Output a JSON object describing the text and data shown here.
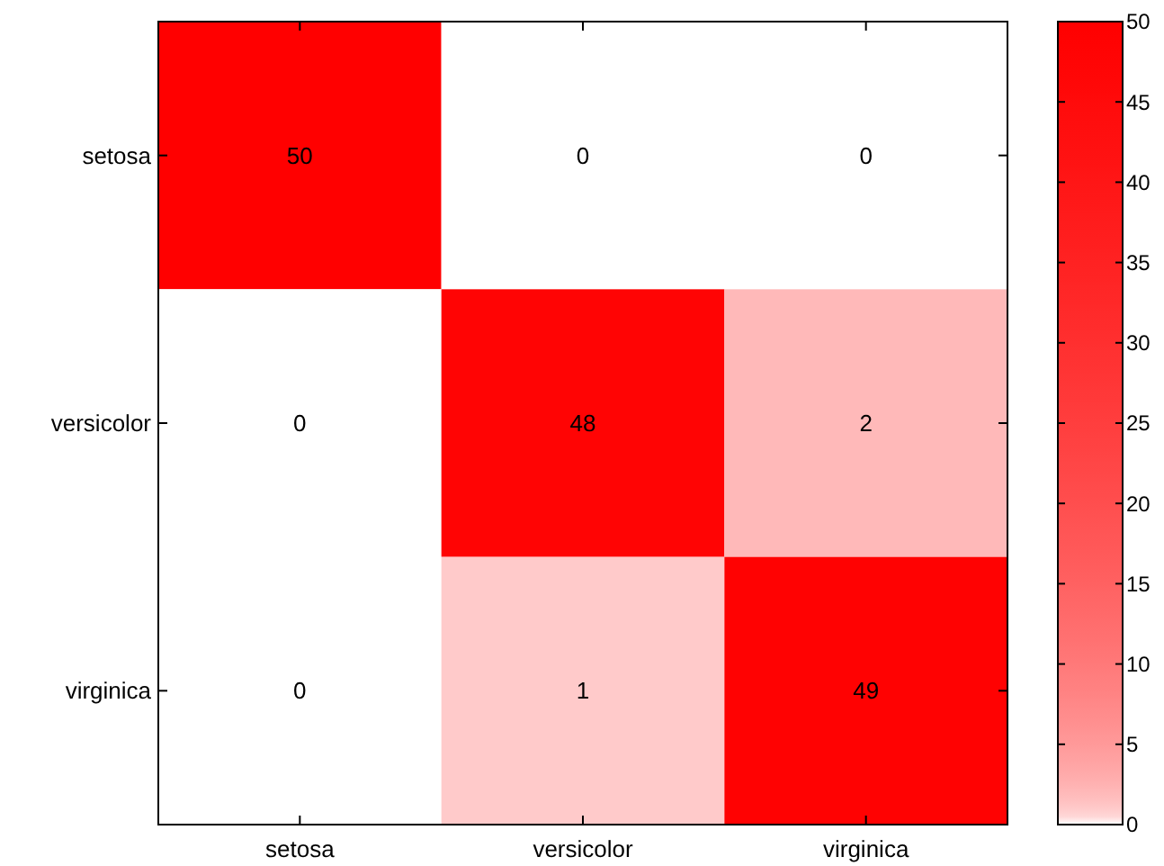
{
  "chart_data": {
    "type": "heatmap",
    "categories": [
      "setosa",
      "versicolor",
      "virginica"
    ],
    "y_categories": [
      "setosa",
      "versicolor",
      "virginica"
    ],
    "cells": [
      [
        50,
        0,
        0
      ],
      [
        0,
        48,
        2
      ],
      [
        0,
        1,
        49
      ]
    ],
    "data_labels": true,
    "color": "#ff0000",
    "clim": [
      0,
      50
    ],
    "cticks": [
      0,
      5,
      10,
      15,
      20,
      25,
      30,
      35,
      40,
      45,
      50
    ]
  }
}
